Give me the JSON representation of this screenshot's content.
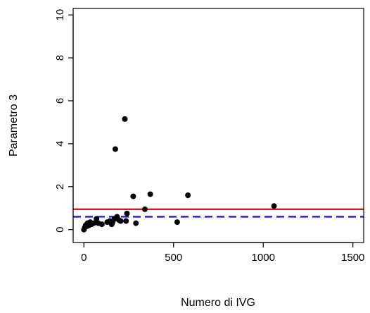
{
  "chart_data": {
    "type": "scatter",
    "title": "",
    "xlabel": "Numero di IVG",
    "ylabel": "Parametro 3",
    "xlim": [
      -60,
      1560
    ],
    "ylim": [
      -0.6,
      10.3
    ],
    "xticks": [
      0,
      500,
      1000,
      1500
    ],
    "xtick_labels": [
      "0",
      "500",
      "1000",
      "1500"
    ],
    "yticks": [
      0,
      2,
      4,
      6,
      8,
      10
    ],
    "ytick_labels": [
      "0",
      "2",
      "4",
      "6",
      "8",
      "10"
    ],
    "grid": false,
    "points": [
      {
        "x": 0,
        "y": 0.0
      },
      {
        "x": 5,
        "y": 0.1
      },
      {
        "x": 10,
        "y": 0.2
      },
      {
        "x": 15,
        "y": 0.15
      },
      {
        "x": 20,
        "y": 0.3
      },
      {
        "x": 28,
        "y": 0.2
      },
      {
        "x": 35,
        "y": 0.35
      },
      {
        "x": 42,
        "y": 0.25
      },
      {
        "x": 55,
        "y": 0.3
      },
      {
        "x": 70,
        "y": 0.5
      },
      {
        "x": 80,
        "y": 0.3
      },
      {
        "x": 100,
        "y": 0.25
      },
      {
        "x": 130,
        "y": 0.35
      },
      {
        "x": 145,
        "y": 0.4
      },
      {
        "x": 155,
        "y": 0.25
      },
      {
        "x": 160,
        "y": 0.35
      },
      {
        "x": 170,
        "y": 0.5
      },
      {
        "x": 175,
        "y": 3.75
      },
      {
        "x": 185,
        "y": 0.6
      },
      {
        "x": 195,
        "y": 0.45
      },
      {
        "x": 205,
        "y": 0.4
      },
      {
        "x": 228,
        "y": 5.15
      },
      {
        "x": 235,
        "y": 0.4
      },
      {
        "x": 240,
        "y": 0.75
      },
      {
        "x": 275,
        "y": 1.55
      },
      {
        "x": 290,
        "y": 0.3
      },
      {
        "x": 340,
        "y": 0.95
      },
      {
        "x": 370,
        "y": 1.65
      },
      {
        "x": 520,
        "y": 0.35
      },
      {
        "x": 580,
        "y": 1.6
      },
      {
        "x": 1060,
        "y": 1.1
      }
    ],
    "reference_lines": [
      {
        "y": 0.95,
        "color": "#e8141c",
        "style": "solid"
      },
      {
        "y": 0.6,
        "color": "#1a1adb",
        "style": "dashed"
      }
    ],
    "colors": {
      "points": "#000000",
      "axis": "#000000"
    }
  }
}
